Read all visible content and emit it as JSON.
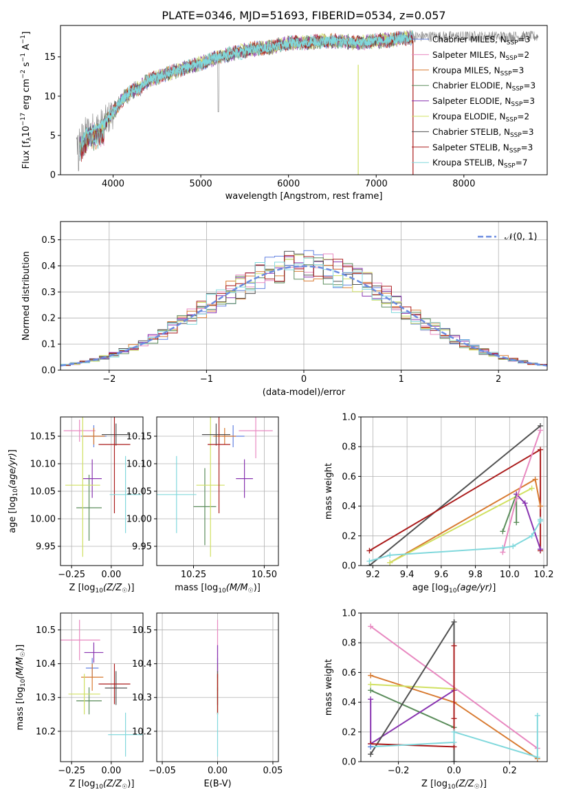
{
  "figure_title": "PLATE=0346, MJD=51693, FIBERID=0534, z=0.057",
  "colors": {
    "chabrier_miles": "#6080e0",
    "salpeter_miles": "#e888c0",
    "kroupa_miles": "#d87a30",
    "chabrier_elodie": "#5a8c5a",
    "salpeter_elodie": "#8833b0",
    "kroupa_elodie": "#d0e060",
    "chabrier_stelib": "#505050",
    "salpeter_stelib": "#aa1a1a",
    "kroupa_stelib": "#80d8dc"
  },
  "chart_data": [
    {
      "id": "spectrum",
      "type": "line",
      "xlabel": "wavelength [Angstrom, rest frame]",
      "ylabel": "Flux [f_λ 10^-17 erg cm^-2 s^-1 A^-1]",
      "xlim": [
        3400,
        8950
      ],
      "ylim": [
        0,
        19
      ],
      "xticks": [
        "4000",
        "5000",
        "6000",
        "7000",
        "8000"
      ],
      "yticks": [
        "0",
        "5",
        "10",
        "15"
      ],
      "legend_position": "right",
      "series": [
        {
          "name": "Chabrier MILES, N_SSP=3",
          "key": "chabrier_miles"
        },
        {
          "name": "Salpeter MILES, N_SSP=2",
          "key": "salpeter_miles"
        },
        {
          "name": "Kroupa MILES, N_SSP=3",
          "key": "kroupa_miles"
        },
        {
          "name": "Chabrier ELODIE, N_SSP=3",
          "key": "chabrier_elodie"
        },
        {
          "name": "Salpeter ELODIE, N_SSP=3",
          "key": "salpeter_elodie"
        },
        {
          "name": "Kroupa ELODIE, N_SSP=2",
          "key": "kroupa_elodie"
        },
        {
          "name": "Chabrier STELIB, N_SSP=3",
          "key": "chabrier_stelib"
        },
        {
          "name": "Salpeter STELIB, N_SSP=3",
          "key": "salpeter_stelib"
        },
        {
          "name": "Kroupa STELIB, N_SSP=7",
          "key": "kroupa_stelib"
        }
      ],
      "continuum": {
        "x": [
          3600,
          3700,
          3800,
          3900,
          4000,
          4100,
          4200,
          4300,
          4400,
          4600,
          4800,
          5000,
          5200,
          5400,
          5600,
          5800,
          6000,
          6200,
          6400,
          6600,
          6800,
          7000,
          7200,
          7400,
          7500
        ],
        "y": [
          4.0,
          5.5,
          6.0,
          6.5,
          8.0,
          9.5,
          10.5,
          11.0,
          12.0,
          12.8,
          13.5,
          14.2,
          15.0,
          15.5,
          16.0,
          16.2,
          16.8,
          16.8,
          17.0,
          17.0,
          16.8,
          17.0,
          17.2,
          17.5,
          17.6
        ]
      },
      "observed_data_range": [
        3580,
        8850
      ]
    },
    {
      "id": "residual_histogram",
      "type": "line",
      "xlabel": "(data-model)/error",
      "ylabel": "Normed distribution",
      "xlim": [
        -2.5,
        2.5
      ],
      "ylim": [
        0,
        0.57
      ],
      "xticks": [
        "−2",
        "−1",
        "0",
        "1",
        "2"
      ],
      "yticks": [
        "0.0",
        "0.1",
        "0.2",
        "0.3",
        "0.4",
        "0.5"
      ],
      "legend": "𝒩(0, 1)",
      "reference_curve": {
        "type": "normal",
        "mean": 0,
        "sigma": 1,
        "color": "#6a8be0"
      },
      "histogram_bin_width": 0.1
    },
    {
      "id": "age_vs_Z",
      "type": "scatter",
      "xlabel": "Z [log10(Z/Z☉)]",
      "ylabel": "age [log10(age/yr)]",
      "xlim": [
        -0.32,
        0.2
      ],
      "ylim": [
        9.915,
        10.185
      ],
      "xticks": [
        "−0.25",
        "0.00"
      ],
      "yticks": [
        "9.95",
        "10.00",
        "10.05",
        "10.10",
        "10.15"
      ],
      "points": [
        {
          "key": "chabrier_miles",
          "x": -0.11,
          "y": 10.15,
          "xerr": 0.08,
          "yerr": 0.02
        },
        {
          "key": "salpeter_miles",
          "x": -0.2,
          "y": 10.16,
          "xerr": 0.1,
          "yerr": 0.02
        },
        {
          "key": "kroupa_miles",
          "x": -0.11,
          "y": 10.15,
          "xerr": 0.07,
          "yerr": 0.015
        },
        {
          "key": "chabrier_elodie",
          "x": -0.14,
          "y": 10.02,
          "xerr": 0.08,
          "yerr": 0.06
        },
        {
          "key": "salpeter_elodie",
          "x": -0.12,
          "y": 10.073,
          "xerr": 0.06,
          "yerr": 0.035
        },
        {
          "key": "kroupa_elodie",
          "x": -0.18,
          "y": 10.061,
          "xerr": 0.11,
          "yerr": 0.13
        },
        {
          "key": "chabrier_stelib",
          "x": 0.03,
          "y": 10.153,
          "xerr": 0.09,
          "yerr": 0.02
        },
        {
          "key": "salpeter_stelib",
          "x": 0.02,
          "y": 10.135,
          "xerr": 0.1,
          "yerr": 0.125
        },
        {
          "key": "kroupa_stelib",
          "x": 0.09,
          "y": 10.044,
          "xerr": 0.1,
          "yerr": 0.07
        }
      ]
    },
    {
      "id": "age_vs_mass",
      "type": "scatter",
      "xlabel": "mass [log10(M/M☉)]",
      "ylabel": "",
      "xlim": [
        10.12,
        10.55
      ],
      "ylim": [
        9.915,
        10.185
      ],
      "xticks": [
        "10.25",
        "10.50"
      ],
      "yticks": [
        "9.95",
        "10.00",
        "10.05",
        "10.10",
        "10.15"
      ],
      "points": [
        {
          "key": "chabrier_miles",
          "x": 10.39,
          "y": 10.15,
          "xerr": 0.04,
          "yerr": 0.02
        },
        {
          "key": "salpeter_miles",
          "x": 10.47,
          "y": 10.16,
          "xerr": 0.06,
          "yerr": 0.05
        },
        {
          "key": "kroupa_miles",
          "x": 10.36,
          "y": 10.15,
          "xerr": 0.04,
          "yerr": 0.015
        },
        {
          "key": "chabrier_elodie",
          "x": 10.29,
          "y": 10.022,
          "xerr": 0.04,
          "yerr": 0.07
        },
        {
          "key": "salpeter_elodie",
          "x": 10.43,
          "y": 10.073,
          "xerr": 0.03,
          "yerr": 0.035
        },
        {
          "key": "kroupa_elodie",
          "x": 10.31,
          "y": 10.061,
          "xerr": 0.05,
          "yerr": 0.13
        },
        {
          "key": "chabrier_stelib",
          "x": 10.33,
          "y": 10.153,
          "xerr": 0.05,
          "yerr": 0.02
        },
        {
          "key": "salpeter_stelib",
          "x": 10.34,
          "y": 10.135,
          "xerr": 0.04,
          "yerr": 0.125
        },
        {
          "key": "kroupa_stelib",
          "x": 10.19,
          "y": 10.044,
          "xerr": 0.07,
          "yerr": 0.07
        }
      ]
    },
    {
      "id": "weight_vs_age",
      "type": "line",
      "xlabel": "age [log10(age/yr)]",
      "ylabel": "mass weight",
      "xlim": [
        9.13,
        10.22
      ],
      "ylim": [
        0,
        1.0
      ],
      "xticks": [
        "9.2",
        "9.4",
        "9.6",
        "9.8",
        "10.0",
        "10.2"
      ],
      "yticks": [
        "0.0",
        "0.2",
        "0.4",
        "0.6",
        "0.8",
        "1.0"
      ],
      "series": [
        {
          "key": "chabrier_stelib",
          "x": [
            9.18,
            10.18
          ],
          "y": [
            0.0,
            0.94
          ]
        },
        {
          "key": "salpeter_stelib",
          "x": [
            9.18,
            10.18,
            10.18
          ],
          "y": [
            0.1,
            0.78,
            0.1
          ]
        },
        {
          "key": "kroupa_miles",
          "x": [
            9.3,
            10.15,
            10.18
          ],
          "y": [
            0.02,
            0.58,
            0.4
          ]
        },
        {
          "key": "kroupa_elodie",
          "x": [
            9.3,
            10.13
          ],
          "y": [
            0.02,
            0.52
          ]
        },
        {
          "key": "chabrier_elodie",
          "x": [
            9.96,
            10.04,
            10.04
          ],
          "y": [
            0.23,
            0.48,
            0.29
          ]
        },
        {
          "key": "salpeter_elodie",
          "x": [
            10.04,
            10.09,
            10.18
          ],
          "y": [
            0.48,
            0.42,
            0.11
          ]
        },
        {
          "key": "salpeter_miles",
          "x": [
            9.96,
            10.04,
            10.18
          ],
          "y": [
            0.09,
            0.45,
            0.91
          ]
        },
        {
          "key": "kroupa_stelib",
          "x": [
            9.18,
            9.3,
            9.96,
            10.02,
            10.13,
            10.18,
            10.18
          ],
          "y": [
            0.03,
            0.07,
            0.12,
            0.13,
            0.2,
            0.3,
            0.31
          ]
        }
      ]
    },
    {
      "id": "mass_vs_Z",
      "type": "scatter",
      "xlabel": "Z [log10(Z/Z☉)]",
      "ylabel": "mass [log10(M/M☉)]",
      "xlim": [
        -0.32,
        0.2
      ],
      "ylim": [
        10.11,
        10.55
      ],
      "xticks": [
        "−0.25",
        "0.00"
      ],
      "yticks": [
        "10.2",
        "10.3",
        "10.4",
        "10.5"
      ],
      "points": [
        {
          "key": "chabrier_miles",
          "x": -0.12,
          "y": 10.387,
          "xerr": 0.04,
          "yerr": 0.03
        },
        {
          "key": "salpeter_miles",
          "x": -0.2,
          "y": 10.47,
          "xerr": 0.13,
          "yerr": 0.06
        },
        {
          "key": "kroupa_miles",
          "x": -0.12,
          "y": 10.36,
          "xerr": 0.07,
          "yerr": 0.04
        },
        {
          "key": "chabrier_elodie",
          "x": -0.14,
          "y": 10.29,
          "xerr": 0.08,
          "yerr": 0.04
        },
        {
          "key": "salpeter_elodie",
          "x": -0.11,
          "y": 10.433,
          "xerr": 0.06,
          "yerr": 0.03
        },
        {
          "key": "kroupa_elodie",
          "x": -0.17,
          "y": 10.31,
          "xerr": 0.1,
          "yerr": 0.06
        },
        {
          "key": "chabrier_stelib",
          "x": 0.03,
          "y": 10.328,
          "xerr": 0.07,
          "yerr": 0.05
        },
        {
          "key": "salpeter_stelib",
          "x": 0.02,
          "y": 10.34,
          "xerr": 0.1,
          "yerr": 0.06
        },
        {
          "key": "kroupa_stelib",
          "x": 0.09,
          "y": 10.19,
          "xerr": 0.11,
          "yerr": 0.065
        }
      ]
    },
    {
      "id": "mass_vs_ebv",
      "type": "scatter",
      "xlabel": "E(B-V)",
      "ylabel": "",
      "xlim": [
        -0.055,
        0.055
      ],
      "ylim": [
        10.11,
        10.55
      ],
      "xticks": [
        "−0.05",
        "0.00",
        "0.05"
      ],
      "yticks": [
        "10.2",
        "10.3",
        "10.4",
        "10.5"
      ],
      "points": [
        {
          "key": "chabrier_miles",
          "x": 0.0,
          "y": 10.387,
          "xerr": 0,
          "yerr": 0.03
        },
        {
          "key": "salpeter_miles",
          "x": 0.0,
          "y": 10.47,
          "xerr": 0,
          "yerr": 0.06
        },
        {
          "key": "kroupa_miles",
          "x": 0.0,
          "y": 10.36,
          "xerr": 0,
          "yerr": 0.04
        },
        {
          "key": "chabrier_elodie",
          "x": 0.0,
          "y": 10.29,
          "xerr": 0,
          "yerr": 0.04
        },
        {
          "key": "salpeter_elodie",
          "x": 0.0,
          "y": 10.415,
          "xerr": 0,
          "yerr": 0.04
        },
        {
          "key": "kroupa_elodie",
          "x": 0.0,
          "y": 10.31,
          "xerr": 0,
          "yerr": 0.06
        },
        {
          "key": "chabrier_stelib",
          "x": 0.0,
          "y": 10.328,
          "xerr": 0,
          "yerr": 0.05
        },
        {
          "key": "salpeter_stelib",
          "x": 0.0,
          "y": 10.31,
          "xerr": 0,
          "yerr": 0.06
        },
        {
          "key": "kroupa_stelib",
          "x": 0.0,
          "y": 10.19,
          "xerr": 0,
          "yerr": 0.065
        }
      ]
    },
    {
      "id": "weight_vs_Z",
      "type": "line",
      "xlabel": "Z [log10(Z/Z☉)]",
      "ylabel": "mass weight",
      "xlim": [
        -0.335,
        0.335
      ],
      "ylim": [
        0,
        1.0
      ],
      "xticks": [
        "−0.2",
        "0.0",
        "0.2"
      ],
      "yticks": [
        "0.0",
        "0.2",
        "0.4",
        "0.6",
        "0.8",
        "1.0"
      ],
      "series": [
        {
          "key": "salpeter_miles",
          "x": [
            -0.3,
            0.3
          ],
          "y": [
            0.91,
            0.09
          ]
        },
        {
          "key": "kroupa_miles",
          "x": [
            -0.3,
            0.0,
            0.3
          ],
          "y": [
            0.58,
            0.4,
            0.02
          ]
        },
        {
          "key": "kroupa_elodie",
          "x": [
            -0.3,
            0.0
          ],
          "y": [
            0.52,
            0.49
          ]
        },
        {
          "key": "chabrier_elodie",
          "x": [
            -0.3,
            0.0
          ],
          "y": [
            0.48,
            0.23
          ]
        },
        {
          "key": "salpeter_elodie",
          "x": [
            -0.3,
            -0.3,
            0.0
          ],
          "y": [
            0.42,
            0.12,
            0.48
          ]
        },
        {
          "key": "chabrier_stelib",
          "x": [
            -0.3,
            0.0,
            0.0
          ],
          "y": [
            0.05,
            0.94,
            0.0
          ]
        },
        {
          "key": "salpeter_stelib",
          "x": [
            -0.3,
            0.0,
            0.0,
            0.0
          ],
          "y": [
            0.12,
            0.1,
            0.78,
            0.29
          ]
        },
        {
          "key": "kroupa_stelib",
          "x": [
            -0.3,
            0.0,
            0.0,
            0.3,
            0.3
          ],
          "y": [
            0.1,
            0.13,
            0.2,
            0.03,
            0.31
          ]
        },
        {
          "key": "chabrier_miles",
          "x": [
            -0.3
          ],
          "y": [
            0.1
          ]
        }
      ]
    }
  ]
}
